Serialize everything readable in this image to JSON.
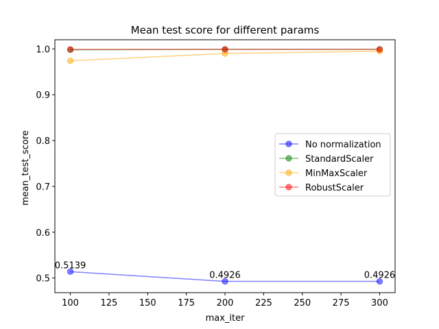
{
  "chart_data": {
    "type": "line",
    "title": "Mean test score for different params",
    "xlabel": "max_iter",
    "ylabel": "mean_test_score",
    "x": [
      100,
      200,
      300
    ],
    "xlim": [
      90,
      310
    ],
    "ylim": [
      0.468,
      1.02
    ],
    "xticks": [
      100,
      125,
      150,
      175,
      200,
      225,
      250,
      275,
      300
    ],
    "yticks": [
      0.5,
      0.6,
      0.7,
      0.8,
      0.9,
      1.0
    ],
    "ytick_labels": [
      "0.5",
      "0.6",
      "0.7",
      "0.8",
      "0.9",
      "1.0"
    ],
    "grid": false,
    "legend_position": "center-right",
    "series": [
      {
        "name": "No normalization",
        "values": [
          0.5139,
          0.4926,
          0.4926
        ],
        "color": "#0000ff",
        "labels": [
          "0.5139",
          "0.4926",
          "0.4926"
        ]
      },
      {
        "name": "StandardScaler",
        "values": [
          0.998,
          0.999,
          0.999
        ],
        "color": "#008000"
      },
      {
        "name": "MinMaxScaler",
        "values": [
          0.974,
          0.99,
          0.995
        ],
        "color": "#ffa500"
      },
      {
        "name": "RobustScaler",
        "values": [
          0.999,
          0.999,
          0.999
        ],
        "color": "#ff0000"
      }
    ]
  }
}
